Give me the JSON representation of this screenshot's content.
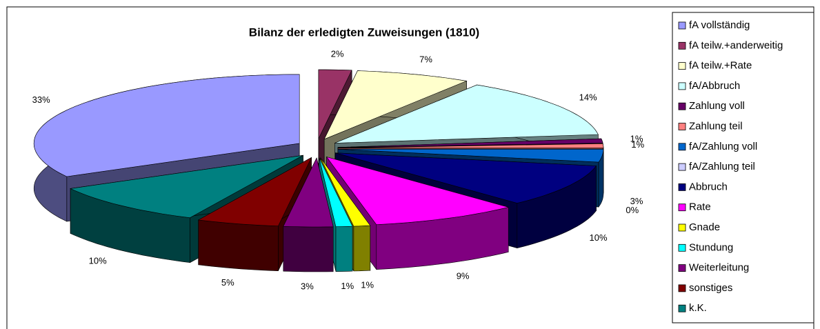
{
  "chart_data": {
    "type": "pie",
    "title": "Bilanz der erledigten Zuweisungen (1810)",
    "categories": [
      "fA vollständig",
      "fA teilw.+anderweitig",
      "fA teilw.+Rate",
      "fA/Abbruch",
      "Zahlung voll",
      "Zahlung teil",
      "fA/Zahlung voll",
      "fA/Zahlung teil",
      "Abbruch",
      "Rate",
      "Gnade",
      "Stundung",
      "Weiterleitung",
      "sonstiges",
      "k.K."
    ],
    "values": [
      33,
      2,
      7,
      14,
      1,
      1,
      3,
      0,
      10,
      9,
      1,
      1,
      3,
      5,
      10
    ],
    "value_labels": [
      "33%",
      "2%",
      "7%",
      "14%",
      "1%",
      "1%",
      "3%",
      "0%",
      "10%",
      "9%",
      "1%",
      "1%",
      "3%",
      "5%",
      "10%"
    ],
    "colors": [
      "#9999ff",
      "#993366",
      "#ffffcc",
      "#ccffff",
      "#660066",
      "#ff8080",
      "#0066cc",
      "#ccccff",
      "#000080",
      "#ff00ff",
      "#ffff00",
      "#00ffff",
      "#800080",
      "#800000",
      "#008080"
    ],
    "legend": "right"
  }
}
